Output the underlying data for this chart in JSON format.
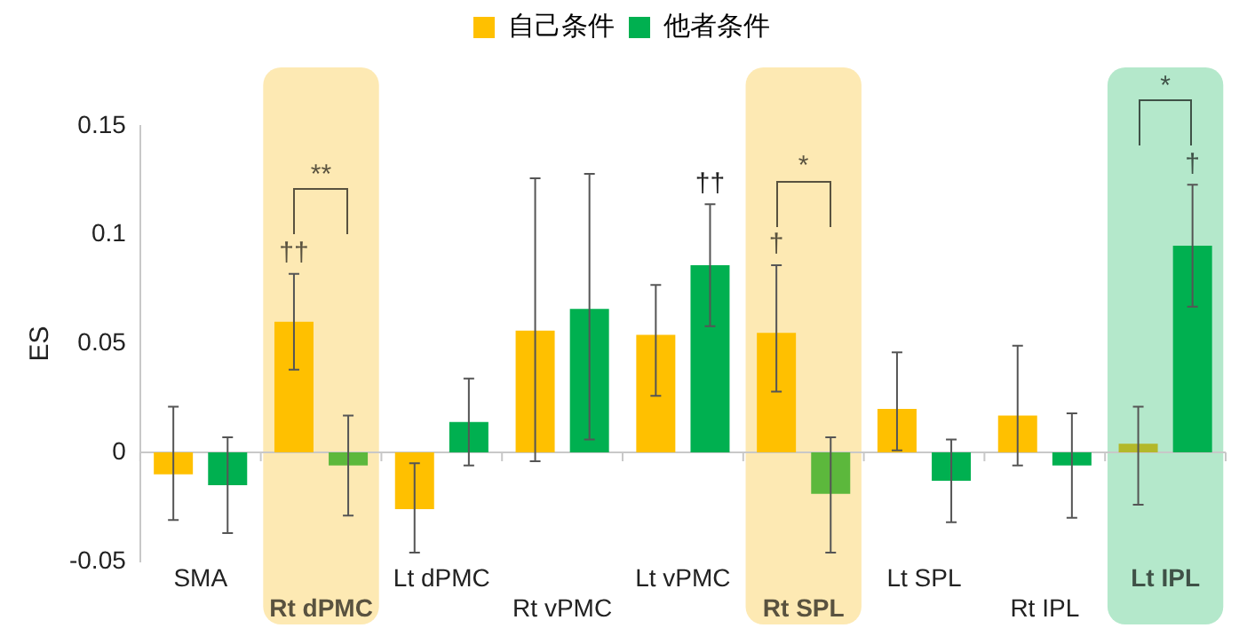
{
  "chart_data": {
    "type": "bar",
    "ylabel": "ES",
    "categories": [
      "SMA",
      "Rt dPMC",
      "Lt dPMC",
      "Rt vPMC",
      "Lt vPMC",
      "Rt SPL",
      "Lt SPL",
      "Rt IPL",
      "Lt IPL"
    ],
    "series": [
      {
        "name": "自己条件",
        "color": "#ffc000",
        "colors": [
          "#ffc000",
          "#ffc000",
          "#ffc000",
          "#ffc000",
          "#ffc000",
          "#ffc000",
          "#ffc000",
          "#ffc000",
          "#b3b82a"
        ],
        "values": [
          -0.01,
          0.06,
          -0.026,
          0.056,
          0.054,
          0.055,
          0.02,
          0.017,
          0.004
        ],
        "errors": [
          [
            -0.031,
            0.021
          ],
          [
            0.038,
            0.082
          ],
          [
            -0.046,
            -0.005
          ],
          [
            -0.004,
            0.126
          ],
          [
            0.026,
            0.077
          ],
          [
            0.028,
            0.086
          ],
          [
            0.001,
            0.046
          ],
          [
            -0.006,
            0.049
          ],
          [
            -0.024,
            0.021
          ]
        ]
      },
      {
        "name": "他者条件",
        "color": "#00b050",
        "colors": [
          "#00b050",
          "#5cb83c",
          "#00b050",
          "#00b050",
          "#00b050",
          "#5cb83c",
          "#00b050",
          "#00b050",
          "#00b050"
        ],
        "values": [
          -0.015,
          -0.006,
          0.014,
          0.066,
          0.086,
          -0.019,
          -0.013,
          -0.006,
          0.095
        ],
        "errors": [
          [
            -0.037,
            0.007
          ],
          [
            -0.029,
            0.017
          ],
          [
            -0.006,
            0.034
          ],
          [
            0.006,
            0.128
          ],
          [
            0.058,
            0.114
          ],
          [
            -0.046,
            0.007
          ],
          [
            -0.032,
            0.006
          ],
          [
            -0.03,
            0.018
          ],
          [
            0.067,
            0.123
          ]
        ]
      }
    ],
    "ref_lines": [
      {
        "axis": "y",
        "value": 0,
        "color": "#c8c8c8",
        "line_style": "solid"
      }
    ],
    "ylim": [
      -0.05,
      0.15
    ],
    "yticks": [
      -0.05,
      0,
      0.05,
      0.1,
      0.15
    ],
    "grid": false,
    "legend": "top",
    "bands": [
      {
        "axis": "x",
        "from": "Rt dPMC",
        "to": "Rt dPMC",
        "color": "#fde9b3"
      },
      {
        "axis": "x",
        "from": "Rt SPL",
        "to": "Rt SPL",
        "color": "#fde9b3"
      },
      {
        "axis": "x",
        "from": "Lt IPL",
        "to": "Lt IPL",
        "color": "#b4e8cb"
      }
    ],
    "annotations": [
      "††",
      "**",
      "††",
      "†",
      "*",
      "†",
      "*"
    ]
  }
}
